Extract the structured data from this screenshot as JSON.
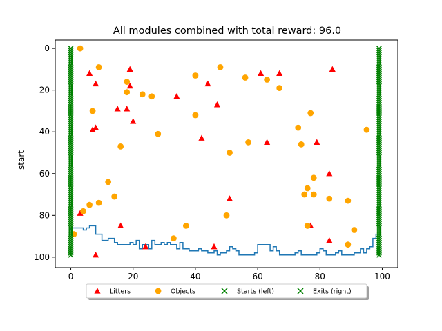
{
  "chart_data": {
    "type": "scatter",
    "title": "All modules combined with total reward: 96.0",
    "xlabel": "",
    "ylabel": "start",
    "xlim": [
      -5,
      105
    ],
    "ylim": [
      105,
      -4
    ],
    "y_inverted": true,
    "grid": false,
    "legend_position": "bottom-center",
    "xticks": [
      0,
      20,
      40,
      60,
      80,
      100
    ],
    "yticks": [
      0,
      20,
      40,
      60,
      80,
      100
    ],
    "series": [
      {
        "name": "Litters",
        "marker": "triangle",
        "color": "#ff0000",
        "points": [
          [
            6,
            12
          ],
          [
            8,
            17
          ],
          [
            19,
            10
          ],
          [
            19,
            18
          ],
          [
            15,
            29
          ],
          [
            18,
            29
          ],
          [
            20,
            35
          ],
          [
            7,
            39
          ],
          [
            8,
            38
          ],
          [
            34,
            23
          ],
          [
            44,
            17
          ],
          [
            47,
            27
          ],
          [
            42,
            43
          ],
          [
            61,
            12
          ],
          [
            67,
            12
          ],
          [
            84,
            10
          ],
          [
            63,
            45
          ],
          [
            79,
            45
          ],
          [
            83,
            60
          ],
          [
            51,
            72
          ],
          [
            3,
            79
          ],
          [
            16,
            85
          ],
          [
            8,
            99
          ],
          [
            24,
            95
          ],
          [
            46,
            95
          ],
          [
            77,
            85
          ],
          [
            83,
            92
          ]
        ]
      },
      {
        "name": "Objects",
        "marker": "circle",
        "color": "#ffa500",
        "points": [
          [
            3,
            0
          ],
          [
            9,
            9
          ],
          [
            18,
            16
          ],
          [
            18,
            21
          ],
          [
            23,
            22
          ],
          [
            26,
            23
          ],
          [
            7,
            30
          ],
          [
            16,
            47
          ],
          [
            28,
            41
          ],
          [
            40,
            13
          ],
          [
            48,
            9
          ],
          [
            40,
            32
          ],
          [
            56,
            14
          ],
          [
            63,
            15
          ],
          [
            67,
            19
          ],
          [
            51,
            50
          ],
          [
            57,
            45
          ],
          [
            77,
            31
          ],
          [
            73,
            38
          ],
          [
            74,
            46
          ],
          [
            95,
            39
          ],
          [
            12,
            64
          ],
          [
            14,
            71
          ],
          [
            9,
            74
          ],
          [
            6,
            75
          ],
          [
            4,
            78
          ],
          [
            1,
            89
          ],
          [
            37,
            85
          ],
          [
            33,
            91
          ],
          [
            50,
            80
          ],
          [
            75,
            70
          ],
          [
            78,
            70
          ],
          [
            76,
            67
          ],
          [
            78,
            62
          ],
          [
            83,
            72
          ],
          [
            89,
            73
          ],
          [
            76,
            85
          ],
          [
            89,
            94
          ],
          [
            91,
            87
          ]
        ]
      },
      {
        "name": "Starts (left)",
        "marker": "x",
        "color": "#008000",
        "x": 0,
        "y_range": [
          0,
          99
        ]
      },
      {
        "name": "Exits (right)",
        "marker": "x",
        "color": "#008000",
        "x": 99,
        "y_range": [
          0,
          99
        ]
      },
      {
        "name": "path",
        "marker": "step",
        "color": "#1f77b4",
        "points": [
          [
            0,
            87
          ],
          [
            0,
            86
          ],
          [
            4,
            86
          ],
          [
            4,
            87
          ],
          [
            5,
            87
          ],
          [
            5,
            86
          ],
          [
            6,
            86
          ],
          [
            6,
            85
          ],
          [
            8,
            85
          ],
          [
            8,
            89
          ],
          [
            10,
            89
          ],
          [
            10,
            92
          ],
          [
            12,
            92
          ],
          [
            12,
            91
          ],
          [
            14,
            91
          ],
          [
            14,
            93
          ],
          [
            15,
            93
          ],
          [
            15,
            94
          ],
          [
            19,
            94
          ],
          [
            19,
            93
          ],
          [
            20,
            93
          ],
          [
            20,
            94
          ],
          [
            21,
            94
          ],
          [
            21,
            92
          ],
          [
            22,
            92
          ],
          [
            22,
            96
          ],
          [
            23,
            96
          ],
          [
            23,
            94
          ],
          [
            25,
            94
          ],
          [
            25,
            96
          ],
          [
            26,
            96
          ],
          [
            26,
            92
          ],
          [
            27,
            92
          ],
          [
            27,
            94
          ],
          [
            29,
            94
          ],
          [
            29,
            93
          ],
          [
            30,
            93
          ],
          [
            30,
            94
          ],
          [
            31,
            94
          ],
          [
            31,
            93
          ],
          [
            32,
            93
          ],
          [
            32,
            94
          ],
          [
            34,
            94
          ],
          [
            34,
            96
          ],
          [
            35,
            96
          ],
          [
            35,
            93
          ],
          [
            36,
            93
          ],
          [
            36,
            96
          ],
          [
            38,
            96
          ],
          [
            38,
            97
          ],
          [
            41,
            97
          ],
          [
            41,
            96
          ],
          [
            42,
            96
          ],
          [
            42,
            97
          ],
          [
            44,
            97
          ],
          [
            44,
            98
          ],
          [
            46,
            98
          ],
          [
            46,
            97
          ],
          [
            47,
            97
          ],
          [
            47,
            99
          ],
          [
            48,
            99
          ],
          [
            48,
            98
          ],
          [
            50,
            98
          ],
          [
            50,
            97
          ],
          [
            51,
            97
          ],
          [
            51,
            95
          ],
          [
            52,
            95
          ],
          [
            52,
            96
          ],
          [
            53,
            96
          ],
          [
            53,
            97
          ],
          [
            54,
            97
          ],
          [
            54,
            99
          ],
          [
            59,
            99
          ],
          [
            59,
            98
          ],
          [
            60,
            98
          ],
          [
            60,
            94
          ],
          [
            64,
            94
          ],
          [
            64,
            97
          ],
          [
            65,
            97
          ],
          [
            65,
            95
          ],
          [
            66,
            95
          ],
          [
            66,
            97
          ],
          [
            67,
            97
          ],
          [
            67,
            99
          ],
          [
            72,
            99
          ],
          [
            72,
            98
          ],
          [
            73,
            98
          ],
          [
            73,
            97
          ],
          [
            74,
            97
          ],
          [
            74,
            99
          ],
          [
            79,
            99
          ],
          [
            79,
            98
          ],
          [
            80,
            98
          ],
          [
            80,
            96
          ],
          [
            81,
            96
          ],
          [
            81,
            97
          ],
          [
            82,
            97
          ],
          [
            82,
            99
          ],
          [
            85,
            99
          ],
          [
            85,
            98
          ],
          [
            86,
            98
          ],
          [
            86,
            97
          ],
          [
            87,
            97
          ],
          [
            87,
            99
          ],
          [
            91,
            99
          ],
          [
            91,
            98
          ],
          [
            93,
            98
          ],
          [
            93,
            96
          ],
          [
            94,
            96
          ],
          [
            94,
            98
          ],
          [
            95,
            98
          ],
          [
            95,
            96
          ],
          [
            96,
            96
          ],
          [
            96,
            95
          ],
          [
            97,
            95
          ],
          [
            97,
            91
          ],
          [
            98,
            91
          ],
          [
            98,
            89
          ],
          [
            99,
            89
          ]
        ]
      }
    ]
  },
  "title": "All modules combined with total reward: 96.0",
  "ylabel": "start",
  "legend": {
    "items": [
      {
        "label": "Litters",
        "marker": "triangle",
        "color": "#ff0000"
      },
      {
        "label": "Objects",
        "marker": "circle",
        "color": "#ffa500"
      },
      {
        "label": "Starts (left)",
        "marker": "x",
        "color": "#008000"
      },
      {
        "label": "Exits (right)",
        "marker": "x",
        "color": "#008000"
      }
    ]
  }
}
